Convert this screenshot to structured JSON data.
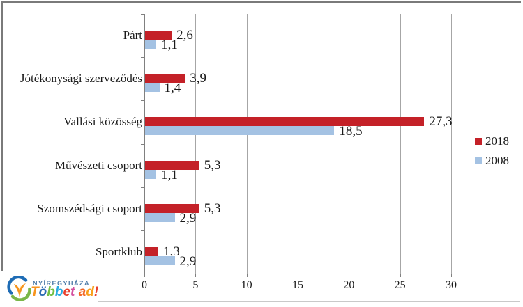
{
  "chart_data": {
    "type": "bar",
    "orientation": "horizontal",
    "title": "",
    "categories": [
      "Párt",
      "Jótékonysági szerveződés",
      "Vallási közösség",
      "Művészeti csoport",
      "Szomszédsági csoport",
      "Sportklub"
    ],
    "series": [
      {
        "name": "2018",
        "color": "#c42128",
        "values": [
          2.6,
          3.9,
          27.3,
          5.3,
          5.3,
          1.3
        ],
        "labels": [
          "2,6",
          "3,9",
          "27,3",
          "5,3",
          "5,3",
          "1,3"
        ]
      },
      {
        "name": "2008",
        "color": "#a4c2e3",
        "values": [
          1.1,
          1.4,
          18.5,
          1.1,
          2.9,
          2.9
        ],
        "labels": [
          "1,1",
          "1,4",
          "18,5",
          "1,1",
          "2,9",
          "2,9"
        ]
      }
    ],
    "x_ticks": [
      "0",
      "5",
      "10",
      "15",
      "20",
      "25",
      "30"
    ],
    "xlim": [
      0,
      30
    ],
    "grid": true,
    "legend_position": "right-middle"
  },
  "legend": {
    "items": [
      {
        "label": "2018",
        "color": "#c42128"
      },
      {
        "label": "2008",
        "color": "#a4c2e3"
      }
    ]
  },
  "logo": {
    "city": "NYÍREGYHÁZA",
    "city_color": "#4d7ba8",
    "slogan_letters": [
      {
        "ch": "T",
        "color": "#f7941e"
      },
      {
        "ch": "ö",
        "color": "#2e6db4"
      },
      {
        "ch": "b",
        "color": "#72bf44"
      },
      {
        "ch": "b",
        "color": "#29abe2"
      },
      {
        "ch": "e",
        "color": "#e8402d"
      },
      {
        "ch": "t",
        "color": "#d4509f"
      },
      {
        "ch": " ",
        "color": "#000000"
      },
      {
        "ch": "a",
        "color": "#f26522"
      },
      {
        "ch": "d",
        "color": "#f9a01b"
      },
      {
        "ch": "!",
        "color": "#e8402d"
      }
    ]
  },
  "colors": {
    "grid": "#a6a6a6",
    "axis": "#808080",
    "text": "#1a1a1a"
  }
}
